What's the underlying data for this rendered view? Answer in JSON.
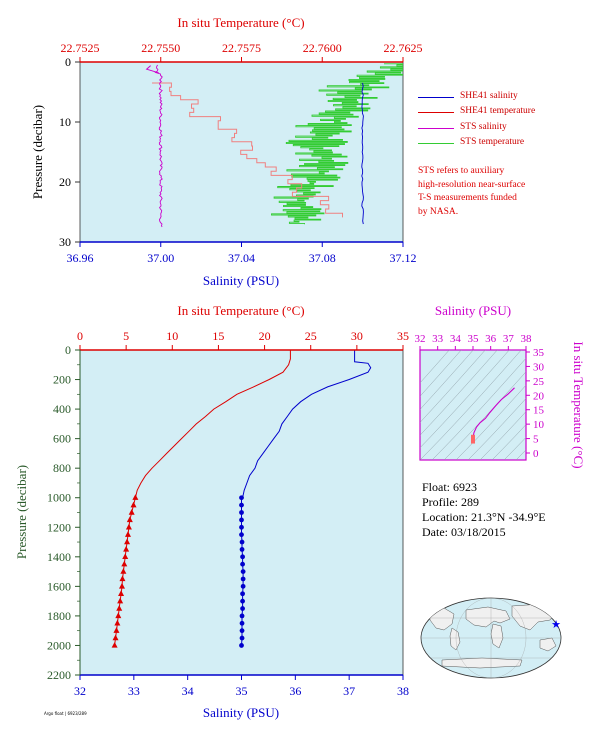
{
  "colors": {
    "plot_bg": "#d3eef5",
    "salinity": "#0000cc",
    "temperature": "#dd0000",
    "sts_salinity": "#cc00cc",
    "sts_temperature": "#33cc33",
    "pressure_axis": "#2a5a2a",
    "ts_axis": "#cc00cc"
  },
  "chart_data": [
    {
      "id": "upper",
      "type": "line",
      "title_top": "In situ Temperature (°C)",
      "xlabel": "Salinity (PSU)",
      "ylabel": "Pressure (decibar)",
      "salinity_range": [
        36.96,
        37.12
      ],
      "salinity_ticks": [
        "36.96",
        "37.00",
        "37.04",
        "37.08",
        "37.12"
      ],
      "temperature_range": [
        22.7525,
        22.7625
      ],
      "temperature_ticks": [
        "22.7525",
        "22.7550",
        "22.7575",
        "22.7600",
        "22.7625"
      ],
      "pressure_range": [
        0,
        30
      ],
      "pressure_ticks": [
        "0",
        "10",
        "20",
        "30"
      ],
      "legend": [
        {
          "label": "SHE41 salinity",
          "color": "#0000cc"
        },
        {
          "label": "SHE41 temperature",
          "color": "#dd0000"
        },
        {
          "label": "STS salinity",
          "color": "#cc00cc"
        },
        {
          "label": "STS temperature",
          "color": "#33cc33"
        }
      ],
      "note": [
        "STS refers to auxiliary",
        "high-resolution near-surface",
        "T-S measurements funded",
        "by NASA."
      ],
      "series": [
        {
          "name": "SHE41 salinity",
          "x": [
            37.1,
            37.1,
            37.1,
            37.1,
            37.1,
            37.1,
            37.1
          ],
          "y": [
            4,
            8,
            12,
            16,
            20,
            24,
            27
          ]
        },
        {
          "name": "SHE41 temperature",
          "x": [
            22.7552,
            22.7555,
            22.7565,
            22.7572,
            22.7578,
            22.7587,
            22.7597,
            22.7604
          ],
          "y": [
            4,
            6,
            10,
            13,
            17,
            20,
            23,
            26
          ]
        },
        {
          "name": "STS salinity",
          "x": [
            36.998,
            37.0,
            37.0,
            37.0,
            37.0,
            37.0,
            37.0
          ],
          "y": [
            1,
            5,
            10,
            15,
            20,
            24,
            27
          ]
        },
        {
          "name": "STS temperature",
          "x": [
            22.7625,
            22.762,
            22.761,
            22.7606,
            22.76,
            22.76,
            22.7595,
            22.7592
          ],
          "y": [
            0.5,
            2,
            5,
            9,
            13,
            18,
            22,
            27
          ]
        }
      ]
    },
    {
      "id": "main",
      "type": "line",
      "title_top": "In situ Temperature (°C)",
      "xlabel": "Salinity (PSU)",
      "ylabel": "Pressure (decibar)",
      "salinity_range": [
        32,
        38
      ],
      "salinity_ticks": [
        "32",
        "33",
        "34",
        "35",
        "36",
        "37",
        "38"
      ],
      "temperature_range": [
        0,
        35
      ],
      "temperature_ticks": [
        "0",
        "5",
        "10",
        "15",
        "20",
        "25",
        "30",
        "35"
      ],
      "pressure_range": [
        0,
        2200
      ],
      "pressure_ticks": [
        "0",
        "200",
        "400",
        "600",
        "800",
        "1000",
        "1200",
        "1400",
        "1600",
        "1800",
        "2000",
        "2200"
      ],
      "temperature_profile": {
        "pressure": [
          0,
          60,
          100,
          150,
          200,
          250,
          300,
          350,
          400,
          450,
          500,
          550,
          600,
          650,
          700,
          750,
          800,
          850,
          900,
          950,
          1000
        ],
        "temperature": [
          22.8,
          22.8,
          22.6,
          22.0,
          20.5,
          18.8,
          17.0,
          15.8,
          14.5,
          13.6,
          12.6,
          11.8,
          11.0,
          10.2,
          9.4,
          8.6,
          7.8,
          7.1,
          6.6,
          6.2,
          6.0
        ]
      },
      "salinity_profile": {
        "pressure": [
          0,
          80,
          90,
          120,
          150,
          200,
          250,
          300,
          350,
          400,
          450,
          500,
          550,
          600,
          650,
          700,
          750,
          800,
          850,
          900,
          950,
          1000
        ],
        "salinity": [
          37.1,
          37.1,
          37.35,
          37.4,
          37.35,
          37.0,
          36.6,
          36.3,
          36.1,
          35.95,
          35.85,
          35.75,
          35.7,
          35.6,
          35.5,
          35.4,
          35.3,
          35.25,
          35.15,
          35.1,
          35.05,
          35.02
        ]
      },
      "temperature_deep": {
        "pressure": [
          1000,
          1050,
          1100,
          1150,
          1200,
          1250,
          1300,
          1350,
          1400,
          1450,
          1500,
          1550,
          1600,
          1650,
          1700,
          1750,
          1800,
          1850,
          1900,
          1950,
          2000
        ],
        "temperature": [
          6.0,
          5.8,
          5.6,
          5.4,
          5.3,
          5.2,
          5.1,
          5.0,
          4.9,
          4.8,
          4.7,
          4.6,
          4.55,
          4.45,
          4.35,
          4.25,
          4.15,
          4.05,
          3.95,
          3.85,
          3.75
        ]
      },
      "salinity_deep": {
        "pressure": [
          1000,
          1050,
          1100,
          1150,
          1200,
          1250,
          1300,
          1350,
          1400,
          1450,
          1500,
          1550,
          1600,
          1650,
          1700,
          1750,
          1800,
          1850,
          1900,
          1950,
          2000
        ],
        "salinity": [
          35.0,
          35.0,
          35.0,
          35.0,
          35.0,
          35.0,
          35.01,
          35.01,
          35.02,
          35.02,
          35.03,
          35.03,
          35.03,
          35.02,
          35.02,
          35.02,
          35.01,
          35.01,
          35.01,
          35.01,
          35.0
        ]
      }
    },
    {
      "id": "ts",
      "type": "line",
      "title_top": "Salinity (PSU)",
      "ylabel": "In situ Temperature (°C)",
      "salinity_range": [
        32,
        38
      ],
      "salinity_ticks": [
        "32",
        "33",
        "34",
        "35",
        "36",
        "37",
        "38"
      ],
      "temperature_range": [
        -5,
        35
      ],
      "temperature_ticks": [
        "0",
        "5",
        "10",
        "15",
        "20",
        "25",
        "30",
        "35"
      ],
      "series": [
        {
          "salinity": [
            35.0,
            35.02,
            35.05,
            35.2,
            35.4,
            35.7,
            35.95,
            36.3,
            36.6,
            37.0,
            37.35
          ],
          "temperature": [
            3.8,
            6.0,
            7.0,
            9.0,
            10.5,
            12.0,
            14.0,
            16.5,
            18.5,
            20.5,
            22.6
          ]
        }
      ]
    }
  ],
  "float_info": {
    "float": "Float:  6923",
    "profile": "Profile:  289",
    "location": "Location:  21.3°N  -34.9°E",
    "date": "Date:  03/18/2015"
  },
  "tiny_label": "Argo float | 6923/289"
}
